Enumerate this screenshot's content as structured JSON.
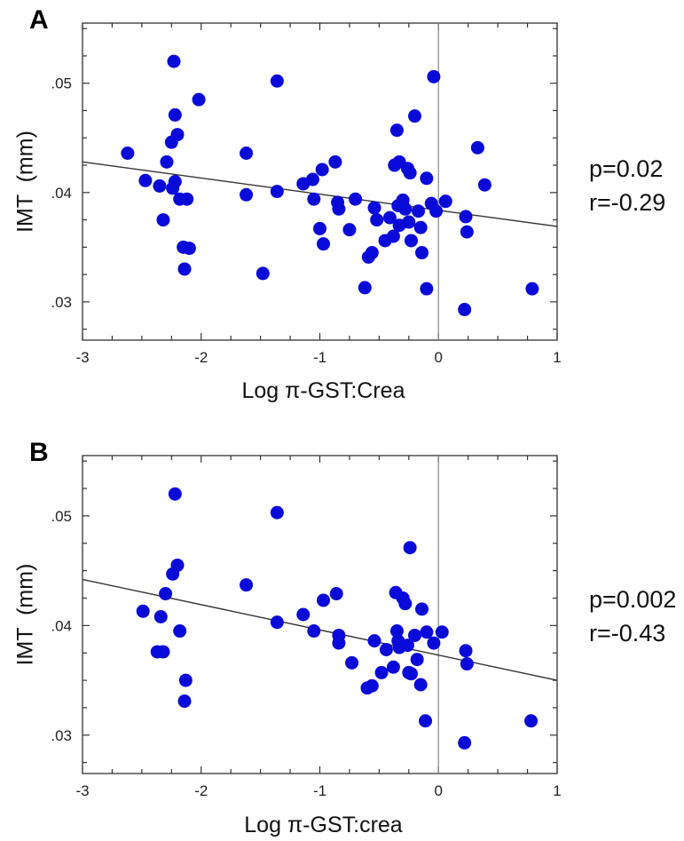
{
  "chart_data": [
    {
      "type": "scatter",
      "panel": "A",
      "title": "",
      "xlabel": "Log π-GST:Crea",
      "ylabel": "IMT  (mm)",
      "xlim": [
        -3,
        1
      ],
      "ylim": [
        0.0265,
        0.0555
      ],
      "xticks": [
        -3,
        -2,
        -1,
        0,
        1
      ],
      "xtick_labels": [
        "-3",
        "-2",
        "-1",
        "0",
        "1"
      ],
      "yticks": [
        0.03,
        0.04,
        0.05
      ],
      "ytick_labels": [
        ".03",
        ".04",
        ".05"
      ],
      "stats": [
        "p=0.02",
        "r=-0.29"
      ],
      "reference_x": 0,
      "regression": {
        "x": [
          -3,
          1
        ],
        "y": [
          0.0428,
          0.0369
        ]
      },
      "series": [
        {
          "x": [
            -2.62,
            -2.47,
            -2.35,
            -2.32,
            -2.29,
            -2.25,
            -2.22,
            -2.22,
            -2.24,
            -2.23,
            -2.2,
            -2.18,
            -2.15,
            -2.14,
            -2.12,
            -2.1,
            -2.02,
            -1.62,
            -1.62,
            -1.48,
            -1.36,
            -1.36,
            -1.14,
            -1.06,
            -1.05,
            -1.0,
            -0.97,
            -0.98,
            -0.87,
            -0.85,
            -0.84,
            -0.75,
            -0.7,
            -0.62,
            -0.59,
            -0.56,
            -0.54,
            -0.52,
            -0.45,
            -0.41,
            -0.38,
            -0.37,
            -0.35,
            -0.34,
            -0.33,
            -0.33,
            -0.3,
            -0.28,
            -0.26,
            -0.24,
            -0.25,
            -0.23,
            -0.2,
            -0.17,
            -0.15,
            -0.14,
            -0.1,
            -0.1,
            -0.06,
            -0.04,
            -0.02,
            0.06,
            0.22,
            0.23,
            0.24,
            0.33,
            0.39,
            0.79
          ],
          "y": [
            0.0436,
            0.0411,
            0.0406,
            0.0375,
            0.0428,
            0.0446,
            0.041,
            0.0471,
            0.0404,
            0.052,
            0.0453,
            0.0394,
            0.035,
            0.033,
            0.0394,
            0.0349,
            0.0485,
            0.0436,
            0.0398,
            0.0326,
            0.0502,
            0.0401,
            0.0408,
            0.0412,
            0.0394,
            0.0367,
            0.0353,
            0.0421,
            0.0428,
            0.0391,
            0.0385,
            0.0366,
            0.0394,
            0.0313,
            0.0341,
            0.0345,
            0.0386,
            0.0375,
            0.0356,
            0.0377,
            0.036,
            0.0425,
            0.0457,
            0.0388,
            0.037,
            0.0428,
            0.0393,
            0.0385,
            0.0422,
            0.0418,
            0.0373,
            0.0356,
            0.047,
            0.0383,
            0.0368,
            0.0345,
            0.0413,
            0.0312,
            0.039,
            0.0506,
            0.0383,
            0.0392,
            0.0293,
            0.0378,
            0.0364,
            0.0441,
            0.0407,
            0.0312
          ]
        }
      ]
    },
    {
      "type": "scatter",
      "panel": "B",
      "title": "",
      "xlabel": "Log π-GST:crea",
      "ylabel": "IMT  (mm)",
      "xlim": [
        -3,
        1
      ],
      "ylim": [
        0.0265,
        0.0555
      ],
      "xticks": [
        -3,
        -2,
        -1,
        0,
        1
      ],
      "xtick_labels": [
        "-3",
        "-2",
        "-1",
        "0",
        "1"
      ],
      "yticks": [
        0.03,
        0.04,
        0.05
      ],
      "ytick_labels": [
        ".03",
        ".04",
        ".05"
      ],
      "stats": [
        "p=0.002",
        "r=-0.43"
      ],
      "reference_x": 0,
      "regression": {
        "x": [
          -3,
          1
        ],
        "y": [
          0.0442,
          0.035
        ]
      },
      "series": [
        {
          "x": [
            -2.49,
            -2.37,
            -2.34,
            -2.32,
            -2.3,
            -2.24,
            -2.22,
            -2.2,
            -2.18,
            -2.14,
            -2.13,
            -1.62,
            -1.36,
            -1.36,
            -1.14,
            -1.05,
            -0.97,
            -0.86,
            -0.84,
            -0.84,
            -0.73,
            -0.6,
            -0.56,
            -0.54,
            -0.48,
            -0.44,
            -0.38,
            -0.36,
            -0.35,
            -0.34,
            -0.33,
            -0.3,
            -0.28,
            -0.26,
            -0.25,
            -0.24,
            -0.23,
            -0.2,
            -0.18,
            -0.15,
            -0.14,
            -0.11,
            -0.1,
            -0.04,
            0.03,
            0.22,
            0.23,
            0.24,
            0.78
          ],
          "y": [
            0.0413,
            0.0376,
            0.0408,
            0.0376,
            0.0429,
            0.0447,
            0.052,
            0.0455,
            0.0395,
            0.0331,
            0.035,
            0.0437,
            0.0403,
            0.0503,
            0.041,
            0.0395,
            0.0423,
            0.0429,
            0.0391,
            0.0384,
            0.0366,
            0.0343,
            0.0345,
            0.0386,
            0.0357,
            0.0378,
            0.0362,
            0.043,
            0.0395,
            0.0386,
            0.038,
            0.0425,
            0.042,
            0.0382,
            0.0357,
            0.0471,
            0.0356,
            0.0391,
            0.0369,
            0.0346,
            0.0415,
            0.0313,
            0.0394,
            0.0384,
            0.0394,
            0.0293,
            0.0377,
            0.0365,
            0.0313
          ]
        }
      ]
    }
  ]
}
